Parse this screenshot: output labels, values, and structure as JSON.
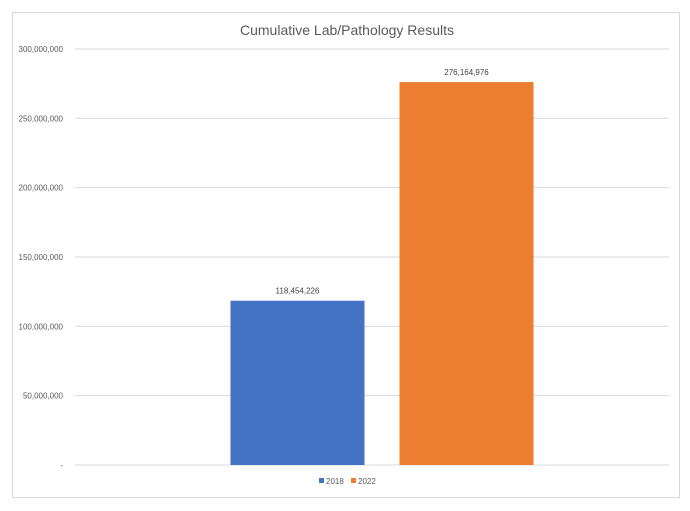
{
  "chart_data": {
    "type": "bar",
    "title": "Cumulative Lab/Pathology Results",
    "categories": [
      ""
    ],
    "series": [
      {
        "name": "2018",
        "values": [
          118454226
        ],
        "label": "118,454,226",
        "color": "#4472c4"
      },
      {
        "name": "2022",
        "values": [
          276164976
        ],
        "label": "276,164,976",
        "color": "#ed7d31"
      }
    ],
    "xlabel": "",
    "ylabel": "",
    "ylim": [
      0,
      300000000
    ],
    "yticks": [
      0,
      50000000,
      100000000,
      150000000,
      200000000,
      250000000,
      300000000
    ],
    "ytick_labels": [
      "-",
      "50,000,000",
      "100,000,000",
      "150,000,000",
      "200,000,000",
      "250,000,000",
      "300,000,000"
    ],
    "grid": true,
    "grid_color": "#d9d9d9",
    "legend": "bottom"
  }
}
